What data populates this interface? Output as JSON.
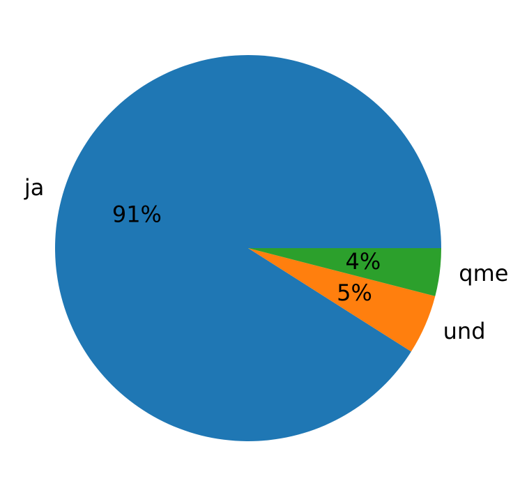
{
  "chart_data": {
    "type": "pie",
    "categories": [
      "ja",
      "und",
      "qme"
    ],
    "values": [
      91,
      5,
      4
    ],
    "value_labels": [
      "91%",
      "5%",
      "4%"
    ],
    "colors": [
      "#1f77b4",
      "#ff7f0e",
      "#2ca02c"
    ]
  }
}
